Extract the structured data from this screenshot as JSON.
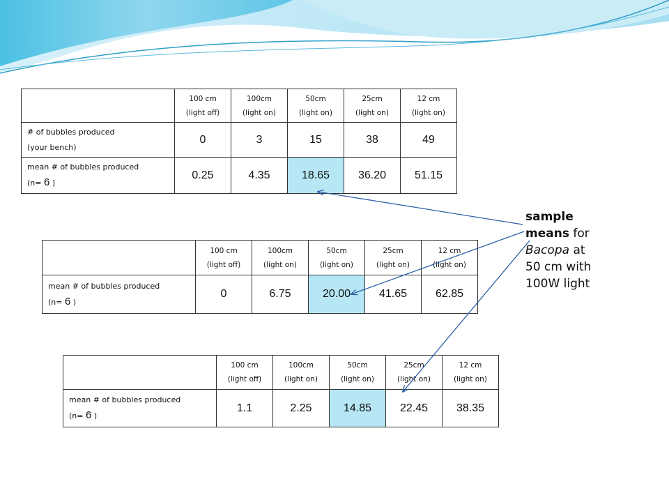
{
  "columns": [
    {
      "line1": "100 cm",
      "line2": "(light off)"
    },
    {
      "line1": "100cm",
      "line2": "(light on)"
    },
    {
      "line1": "50cm",
      "line2": "(light on)"
    },
    {
      "line1": "25cm",
      "line2": "(light on)"
    },
    {
      "line1": "12 cm",
      "line2": "(light on)"
    }
  ],
  "table1": {
    "row1": {
      "label1": "# of bubbles produced",
      "label2": "(your bench)",
      "values": [
        "0",
        "3",
        "15",
        "38",
        "49"
      ]
    },
    "row2": {
      "label1": "mean # of bubbles produced",
      "n_prefix": "(n=",
      "n_value": "6",
      "n_suffix": ")",
      "values": [
        "0.25",
        "4.35",
        "18.65",
        "36.20",
        "51.15"
      ]
    }
  },
  "table2": {
    "row1": {
      "label1": "mean # of bubbles produced",
      "n_prefix": "(n=",
      "n_value": "6",
      "n_suffix": ")",
      "values": [
        "0",
        "6.75",
        "20.00",
        "41.65",
        "62.85"
      ]
    }
  },
  "table3": {
    "row1": {
      "label1": "mean # of bubbles produced",
      "n_prefix": "(n=",
      "n_value": "6",
      "n_suffix": ")",
      "values": [
        "1.1",
        "2.25",
        "14.85",
        "22.45",
        "38.35"
      ]
    }
  },
  "note": {
    "bold1": "sample",
    "bold2": "means",
    "text1": "for",
    "italic": "Bacopa",
    "text2": "at",
    "line4": "50 cm with",
    "line5": "100W light"
  },
  "colors": {
    "highlight": "#b7e6f4",
    "arrow": "#2e5fa8",
    "wave_dark": "#3ab5d8",
    "wave_light": "#bfe8f5"
  }
}
